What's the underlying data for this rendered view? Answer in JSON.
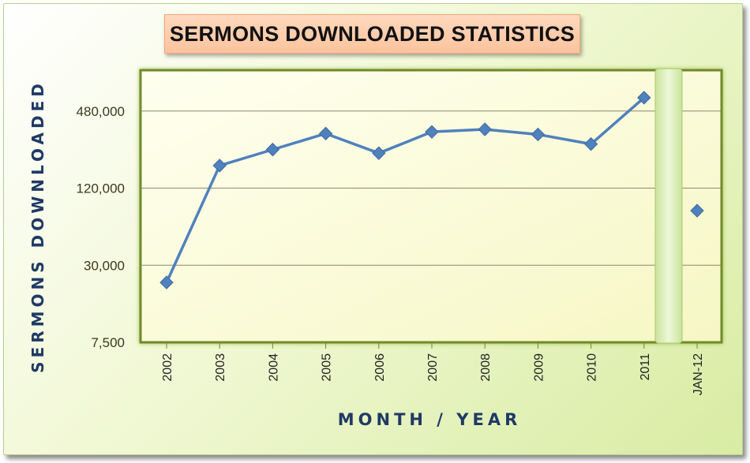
{
  "chart_data": {
    "type": "line",
    "title": "SERMONS DOWNLOADED STATISTICS",
    "xlabel": "MONTH / YEAR",
    "ylabel": "SERMONS DOWNLOADED",
    "y_scale": "log",
    "ylim": [
      7500,
      1000000
    ],
    "y_ticks": [
      7500,
      30000,
      120000,
      480000
    ],
    "y_tick_labels": [
      "7,500",
      "30,000",
      "120,000",
      "480,000"
    ],
    "categories": [
      "2002",
      "2003",
      "2004",
      "2005",
      "2006",
      "2007",
      "2008",
      "2009",
      "2010",
      "2011",
      "JAN-12"
    ],
    "series": [
      {
        "name": "",
        "values": [
          22000,
          180000,
          240000,
          320000,
          225000,
          330000,
          345000,
          315000,
          265000,
          610000,
          null
        ],
        "color": "#4f81bd"
      },
      {
        "name": "",
        "values": [
          null,
          null,
          null,
          null,
          null,
          null,
          null,
          null,
          null,
          null,
          80000
        ],
        "color": "#4f81bd",
        "marker_only": true
      }
    ],
    "grid": true,
    "legend": "none",
    "colors": {
      "plot_background": "#fdfdd8",
      "plot_border": "#6f8a2a",
      "separator_band": "#dff0b8",
      "line": "#4f81bd",
      "marker": "#4f81bd",
      "axis_label": "#1f3a64",
      "title_box": "#fcc39d"
    }
  }
}
